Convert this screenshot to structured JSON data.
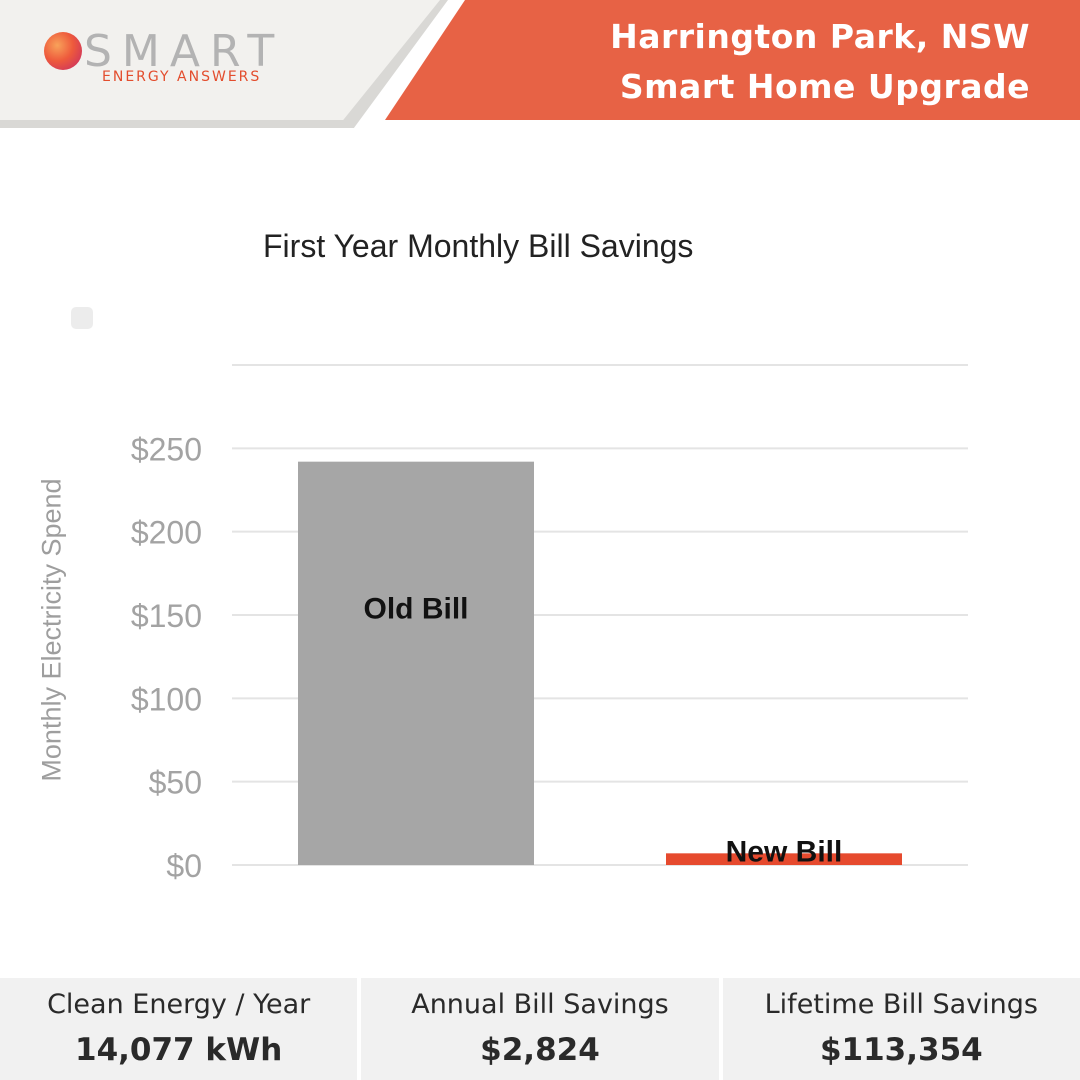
{
  "brand": {
    "logo_word": "SMART",
    "logo_sub": "ENERGY ANSWERS"
  },
  "header": {
    "line1": "Harrington Park, NSW",
    "line2": "Smart Home Upgrade",
    "accent_color": "#e76245"
  },
  "chart_data": {
    "type": "bar",
    "title": "First Year Monthly Bill Savings",
    "ylabel": "Monthly Electricity Spend",
    "xlabel": "",
    "categories": [
      "Old Bill",
      "New Bill"
    ],
    "values": [
      242,
      7
    ],
    "colors": [
      "#a6a6a6",
      "#e64a2e"
    ],
    "ylim": [
      0,
      300
    ],
    "yticks": [
      0,
      50,
      100,
      150,
      200,
      250
    ],
    "ytick_labels": [
      "$0",
      "$50",
      "$100",
      "$150",
      "$200",
      "$250"
    ],
    "grid": true
  },
  "stats": [
    {
      "label": "Clean Energy / Year",
      "value": "14,077 kWh"
    },
    {
      "label": "Annual Bill Savings",
      "value": "$2,824"
    },
    {
      "label": "Lifetime Bill Savings",
      "value": "$113,354"
    }
  ]
}
